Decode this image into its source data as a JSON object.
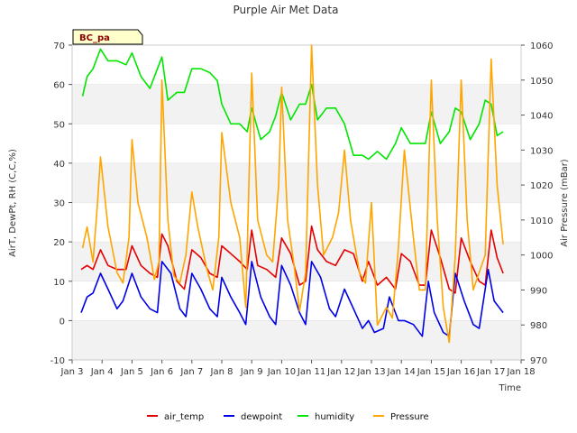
{
  "chart_data": {
    "type": "line",
    "title": "Purple Air Met Data",
    "site_badge": "BC_pa",
    "xlabel": "Time",
    "ylabel_left": "AirT, DewPt, RH (C,C,%)",
    "ylabel_right": "Air Pressure (mBar)",
    "xlim": [
      3,
      18
    ],
    "ylim_left": [
      -10,
      70
    ],
    "ylim_right": [
      970,
      1060
    ],
    "x_ticks": [
      3,
      4,
      5,
      6,
      7,
      8,
      9,
      10,
      11,
      12,
      13,
      14,
      15,
      16,
      17,
      18
    ],
    "x_tick_labels": [
      "Jan 3",
      "Jan 4",
      "Jan 5",
      "Jan 6",
      "Jan 7",
      "Jan 8",
      "Jan 9",
      "Jan 10",
      "Jan 11",
      "Jan 12",
      "Jan 13",
      "Jan 14",
      "Jan 15",
      "Jan 16",
      "Jan 17",
      "Jan 18"
    ],
    "y_ticks_left": [
      -10,
      0,
      10,
      20,
      30,
      40,
      50,
      60,
      70
    ],
    "y_ticks_right": [
      970,
      980,
      990,
      1000,
      1010,
      1020,
      1030,
      1040,
      1050,
      1060
    ],
    "band_color": "#f2f2f2",
    "legend_position": "bottom",
    "series": [
      {
        "name": "air_temp",
        "axis": "left",
        "color": "#e60000",
        "x": [
          3.3,
          3.5,
          3.7,
          3.95,
          4.2,
          4.5,
          4.8,
          5.0,
          5.3,
          5.6,
          5.85,
          6.0,
          6.2,
          6.5,
          6.75,
          7.0,
          7.3,
          7.6,
          7.85,
          8.0,
          8.3,
          8.6,
          8.85,
          9.0,
          9.2,
          9.5,
          9.8,
          10.0,
          10.3,
          10.6,
          10.8,
          11.0,
          11.2,
          11.5,
          11.8,
          12.1,
          12.4,
          12.7,
          12.9,
          13.2,
          13.5,
          13.8,
          14.0,
          14.3,
          14.6,
          14.8,
          15.0,
          15.3,
          15.6,
          15.8,
          16.0,
          16.3,
          16.6,
          16.8,
          17.0,
          17.2,
          17.4
        ],
        "y": [
          13,
          14,
          13,
          18,
          14,
          13,
          13,
          19,
          14,
          12,
          11,
          22,
          19,
          10,
          8,
          18,
          16,
          12,
          11,
          19,
          17,
          15,
          13,
          23,
          14,
          13,
          11,
          21,
          17,
          9,
          10,
          24,
          18,
          15,
          14,
          18,
          17,
          10,
          15,
          9,
          11,
          8,
          17,
          15,
          9,
          9,
          23,
          16,
          8,
          7,
          21,
          15,
          10,
          9,
          23,
          16,
          12
        ]
      },
      {
        "name": "dewpoint",
        "axis": "left",
        "color": "#0000e6",
        "x": [
          3.3,
          3.5,
          3.7,
          3.95,
          4.2,
          4.5,
          4.7,
          5.0,
          5.3,
          5.6,
          5.85,
          6.0,
          6.3,
          6.6,
          6.8,
          7.0,
          7.3,
          7.6,
          7.85,
          8.0,
          8.3,
          8.6,
          8.8,
          9.0,
          9.3,
          9.6,
          9.8,
          10.0,
          10.3,
          10.6,
          10.8,
          11.0,
          11.3,
          11.6,
          11.8,
          12.1,
          12.4,
          12.7,
          12.9,
          13.1,
          13.4,
          13.6,
          13.9,
          14.1,
          14.4,
          14.7,
          14.9,
          15.1,
          15.4,
          15.6,
          15.8,
          16.1,
          16.4,
          16.6,
          16.9,
          17.1,
          17.4
        ],
        "y": [
          2,
          6,
          7,
          12,
          8,
          3,
          5,
          12,
          6,
          3,
          2,
          15,
          12,
          3,
          1,
          12,
          8,
          3,
          1,
          11,
          6,
          2,
          -1,
          15,
          6,
          1,
          -1,
          14,
          9,
          2,
          -1,
          15,
          11,
          3,
          1,
          8,
          3,
          -2,
          0,
          -3,
          -2,
          6,
          0,
          0,
          -1,
          -4,
          10,
          2,
          -3,
          -4,
          12,
          5,
          -1,
          -2,
          13,
          5,
          2
        ]
      },
      {
        "name": "humidity",
        "axis": "left",
        "color": "#00e600",
        "x": [
          3.35,
          3.5,
          3.7,
          3.95,
          4.2,
          4.5,
          4.8,
          5.0,
          5.3,
          5.6,
          5.85,
          6.0,
          6.2,
          6.5,
          6.75,
          7.0,
          7.3,
          7.6,
          7.85,
          8.0,
          8.3,
          8.6,
          8.85,
          9.0,
          9.3,
          9.6,
          9.8,
          10.0,
          10.3,
          10.6,
          10.8,
          11.0,
          11.2,
          11.5,
          11.8,
          12.1,
          12.4,
          12.7,
          12.9,
          13.2,
          13.5,
          13.8,
          14.0,
          14.3,
          14.6,
          14.8,
          15.0,
          15.3,
          15.6,
          15.8,
          16.0,
          16.3,
          16.6,
          16.8,
          17.0,
          17.2,
          17.4
        ],
        "y": [
          57,
          62,
          64,
          69,
          66,
          66,
          65,
          68,
          62,
          59,
          64,
          67,
          56,
          58,
          58,
          64,
          64,
          63,
          61,
          55,
          50,
          50,
          48,
          54,
          46,
          48,
          52,
          58,
          51,
          55,
          55,
          60,
          51,
          54,
          54,
          50,
          42,
          42,
          41,
          43,
          41,
          45,
          49,
          45,
          45,
          45,
          53,
          45,
          48,
          54,
          53,
          46,
          50,
          56,
          55,
          47,
          48
        ]
      },
      {
        "name": "Pressure",
        "axis": "right",
        "color": "#ffa500",
        "x": [
          3.35,
          3.5,
          3.7,
          3.85,
          3.95,
          4.2,
          4.5,
          4.7,
          4.9,
          5.0,
          5.2,
          5.5,
          5.75,
          5.9,
          6.0,
          6.2,
          6.4,
          6.6,
          6.8,
          7.0,
          7.2,
          7.5,
          7.7,
          7.9,
          8.0,
          8.3,
          8.6,
          8.8,
          9.0,
          9.2,
          9.5,
          9.7,
          9.9,
          10.0,
          10.2,
          10.4,
          10.6,
          10.8,
          11.0,
          11.2,
          11.4,
          11.7,
          11.9,
          12.1,
          12.3,
          12.6,
          12.8,
          13.0,
          13.2,
          13.5,
          13.7,
          13.9,
          14.1,
          14.4,
          14.6,
          14.8,
          15.0,
          15.2,
          15.4,
          15.6,
          15.8,
          16.0,
          16.2,
          16.4,
          16.6,
          16.8,
          17.0,
          17.2,
          17.4
        ],
        "y": [
          1002,
          1008,
          998,
          1015,
          1028,
          1008,
          995,
          992,
          1005,
          1033,
          1015,
          1005,
          993,
          998,
          1050,
          1010,
          994,
          992,
          1000,
          1018,
          1008,
          996,
          990,
          1005,
          1035,
          1015,
          1005,
          985,
          1052,
          1010,
          1000,
          998,
          1020,
          1048,
          1010,
          998,
          984,
          995,
          1060,
          1020,
          1000,
          1005,
          1012,
          1030,
          1010,
          995,
          992,
          1015,
          980,
          985,
          982,
          1002,
          1030,
          1005,
          990,
          990,
          1050,
          1010,
          985,
          975,
          1000,
          1050,
          1010,
          990,
          995,
          1000,
          1056,
          1020,
          1003
        ]
      }
    ]
  }
}
